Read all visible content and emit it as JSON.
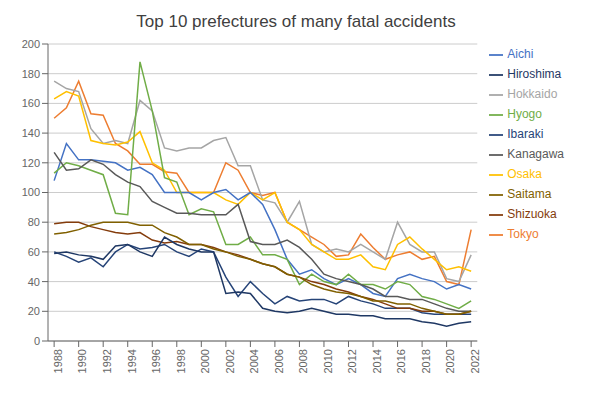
{
  "chart_data": {
    "type": "line",
    "title": "Top 10 prefectures of many fatal accidents",
    "x": [
      1988,
      1989,
      1990,
      1991,
      1992,
      1993,
      1994,
      1995,
      1996,
      1997,
      1998,
      1999,
      2000,
      2001,
      2002,
      2003,
      2004,
      2005,
      2006,
      2007,
      2008,
      2009,
      2010,
      2011,
      2012,
      2013,
      2014,
      2015,
      2016,
      2017,
      2018,
      2019,
      2020,
      2021,
      2022
    ],
    "series": [
      {
        "name": "Tokyo",
        "color": "#ED7D31",
        "values": [
          150,
          157,
          175,
          153,
          152,
          133,
          128,
          119,
          119,
          114,
          113,
          100,
          100,
          100,
          120,
          115,
          100,
          98,
          100,
          80,
          75,
          70,
          65,
          57,
          58,
          72,
          63,
          55,
          58,
          60,
          55,
          57,
          40,
          38,
          75
        ]
      },
      {
        "name": "Hokkaido",
        "color": "#A5A5A5",
        "values": [
          175,
          170,
          168,
          143,
          133,
          135,
          133,
          162,
          155,
          130,
          128,
          130,
          130,
          135,
          137,
          118,
          118,
          95,
          93,
          80,
          94,
          65,
          60,
          62,
          60,
          65,
          60,
          55,
          80,
          65,
          60,
          60,
          42,
          40,
          58
        ]
      },
      {
        "name": "Osaka",
        "color": "#FFC000",
        "values": [
          163,
          168,
          165,
          135,
          133,
          132,
          134,
          141,
          120,
          115,
          100,
          100,
          100,
          100,
          95,
          92,
          100,
          95,
          100,
          80,
          75,
          65,
          60,
          55,
          55,
          58,
          50,
          48,
          65,
          70,
          62,
          55,
          48,
          50,
          47
        ]
      },
      {
        "name": "Aichi",
        "color": "#4472C4",
        "values": [
          108,
          133,
          122,
          122,
          121,
          120,
          115,
          117,
          112,
          100,
          100,
          100,
          95,
          100,
          102,
          95,
          100,
          92,
          75,
          55,
          45,
          48,
          42,
          38,
          42,
          38,
          32,
          30,
          42,
          45,
          42,
          40,
          35,
          38,
          35
        ]
      },
      {
        "name": "Hyogo",
        "color": "#70AD47",
        "values": [
          113,
          120,
          118,
          115,
          112,
          86,
          85,
          188,
          155,
          110,
          107,
          85,
          89,
          87,
          65,
          65,
          70,
          58,
          58,
          55,
          38,
          45,
          40,
          38,
          45,
          38,
          38,
          35,
          40,
          38,
          30,
          28,
          25,
          22,
          27
        ]
      },
      {
        "name": "Ibaraki",
        "color": "#264478",
        "values": [
          60,
          57,
          53,
          56,
          50,
          60,
          65,
          62,
          63,
          65,
          60,
          57,
          62,
          60,
          43,
          30,
          40,
          32,
          25,
          30,
          27,
          28,
          28,
          25,
          30,
          27,
          25,
          22,
          22,
          22,
          19,
          18,
          18,
          18,
          18
        ]
      },
      {
        "name": "Shizuoka",
        "color": "#843C0C",
        "values": [
          79,
          80,
          80,
          77,
          75,
          73,
          72,
          73,
          68,
          66,
          67,
          65,
          65,
          63,
          60,
          58,
          55,
          52,
          50,
          45,
          43,
          40,
          38,
          35,
          33,
          30,
          28,
          25,
          22,
          22,
          20,
          20,
          18,
          18,
          20
        ]
      },
      {
        "name": "Kanagawa",
        "color": "#595959",
        "values": [
          127,
          115,
          116,
          122,
          119,
          112,
          107,
          104,
          94,
          90,
          86,
          86,
          85,
          85,
          85,
          92,
          67,
          65,
          65,
          68,
          63,
          55,
          45,
          42,
          40,
          38,
          35,
          30,
          30,
          28,
          28,
          25,
          22,
          20,
          20
        ]
      },
      {
        "name": "Saitama",
        "color": "#806000",
        "values": [
          72,
          73,
          75,
          78,
          80,
          80,
          80,
          78,
          78,
          73,
          70,
          65,
          65,
          62,
          60,
          57,
          55,
          52,
          50,
          45,
          43,
          38,
          35,
          33,
          32,
          30,
          27,
          27,
          25,
          25,
          22,
          20,
          18,
          18,
          20
        ]
      },
      {
        "name": "Hiroshima",
        "color": "#1F3864",
        "values": [
          59,
          60,
          58,
          57,
          55,
          64,
          65,
          60,
          57,
          70,
          65,
          62,
          60,
          60,
          32,
          33,
          32,
          22,
          20,
          19,
          20,
          22,
          20,
          18,
          18,
          17,
          17,
          15,
          15,
          15,
          13,
          12,
          10,
          12,
          13
        ]
      }
    ],
    "xlim": [
      1987.5,
      2022.5
    ],
    "xticks": [
      1988,
      1990,
      1992,
      1994,
      1996,
      1998,
      2000,
      2002,
      2004,
      2006,
      2008,
      2010,
      2012,
      2014,
      2016,
      2018,
      2020,
      2022
    ],
    "ylim": [
      0,
      200
    ],
    "yticks": [
      0,
      20,
      40,
      60,
      80,
      100,
      120,
      140,
      160,
      180,
      200
    ],
    "grid": true,
    "legend": "right"
  }
}
